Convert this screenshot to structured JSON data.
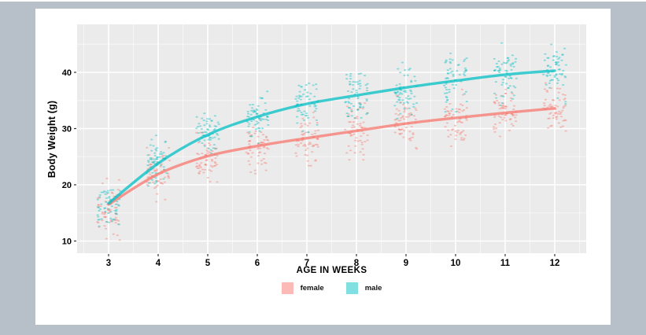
{
  "window": {
    "frame_color": "#b7bfc8",
    "canvas_color": "#ffffff"
  },
  "chart_data": {
    "type": "scatter",
    "subtype": "jittered points with loess smooth lines, ggplot2 style",
    "title": "",
    "xlabel": "AGE IN WEEKS",
    "ylabel": "Body Weight (g)",
    "legend_position": "bottom",
    "grid": "on",
    "panel_color": "#ebebeb",
    "grid_major_color": "#ffffff",
    "grid_minor_color": "#f7f7f7",
    "x_ticks": [
      3,
      4,
      5,
      6,
      7,
      8,
      9,
      10,
      11,
      12
    ],
    "y_ticks": [
      10,
      20,
      30,
      40
    ],
    "x_minor_ticks": [
      2.5,
      3.5,
      4.5,
      5.5,
      6.5,
      7.5,
      8.5,
      9.5,
      10.5,
      11.5,
      12.5
    ],
    "y_minor_ticks": [
      15,
      25,
      35,
      45
    ],
    "xlim": [
      2.37,
      12.63
    ],
    "ylim": [
      7.8,
      48.5
    ],
    "weeks": [
      3,
      4,
      5,
      6,
      7,
      8,
      9,
      10,
      11,
      12
    ],
    "series": [
      {
        "name": "female",
        "color": "#F8766D",
        "smooth_line": [
          16.5,
          21.9,
          25.1,
          26.9,
          28.3,
          29.6,
          30.9,
          31.9,
          32.8,
          33.6
        ],
        "cluster_mean": [
          15.7,
          21.8,
          24.7,
          26.8,
          28.2,
          29.5,
          30.8,
          31.9,
          32.8,
          33.6
        ],
        "cluster_sd": [
          2.3,
          2.0,
          1.9,
          2.0,
          2.0,
          2.1,
          2.1,
          2.1,
          2.1,
          2.1
        ]
      },
      {
        "name": "male",
        "color": "#00BFC4",
        "smooth_line": [
          16.7,
          23.8,
          28.9,
          32.1,
          34.4,
          35.9,
          37.3,
          38.5,
          39.6,
          40.3
        ],
        "cluster_mean": [
          16.1,
          23.9,
          29.3,
          32.2,
          34.4,
          35.9,
          37.3,
          38.5,
          39.6,
          40.4
        ],
        "cluster_sd": [
          2.3,
          2.2,
          1.9,
          2.0,
          2.1,
          2.2,
          2.3,
          2.3,
          2.4,
          2.5
        ]
      }
    ],
    "points_per_group_per_week": 60,
    "jitter_width_weeks": 0.23,
    "sd_clamp": 2.4,
    "point_alpha": 0.42,
    "line_alpha": 0.75,
    "seed": 20240613,
    "tick_color": "#333333",
    "text_color": "#000000"
  }
}
